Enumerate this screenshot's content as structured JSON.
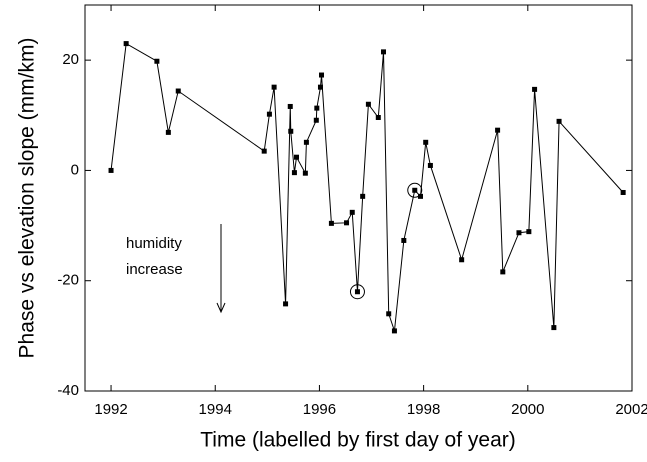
{
  "chart_data": {
    "type": "line",
    "x_label": "Time (labelled by first day of year)",
    "y_label": "Phase vs elevation slope (mm/km)",
    "annotation": "humidity increase",
    "x": [
      1992.0,
      1992.29,
      1992.88,
      1993.1,
      1993.29,
      1994.94,
      1995.04,
      1995.13,
      1995.35,
      1995.44,
      1995.45,
      1995.52,
      1995.56,
      1995.73,
      1995.75,
      1995.94,
      1995.95,
      1996.02,
      1996.04,
      1996.23,
      1996.52,
      1996.63,
      1996.73,
      1996.83,
      1996.94,
      1997.13,
      1997.23,
      1997.33,
      1997.44,
      1997.62,
      1997.83,
      1997.94,
      1998.04,
      1998.13,
      1998.73,
      1999.42,
      1999.52,
      1999.83,
      2000.02,
      2000.13,
      2000.5,
      2000.6,
      2001.83
    ],
    "series": [
      {
        "color": "#000000",
        "values": [
          0,
          23,
          19.8,
          6.9,
          14.4,
          3.5,
          10.2,
          15.1,
          -24.2,
          11.6,
          7.1,
          -0.4,
          2.4,
          -0.5,
          5.1,
          9.1,
          11.3,
          15.1,
          17.3,
          -9.6,
          -9.5,
          -7.6,
          -22.0,
          -4.7,
          12.0,
          9.6,
          21.5,
          -26.0,
          -29.1,
          -12.7,
          -3.6,
          -4.7,
          5.1,
          0.9,
          -16.2,
          7.3,
          -18.4,
          -11.3,
          -11.1,
          14.7,
          -28.5,
          8.9,
          -4.0
        ]
      }
    ],
    "highlighted": [
      22,
      30
    ],
    "xlim": [
      1991.5,
      2002
    ],
    "xticks": [
      1992,
      1994,
      1996,
      1998,
      2000,
      2002
    ],
    "ylim": [
      -40,
      30
    ],
    "yticks": [
      -40,
      -20,
      0,
      20
    ]
  }
}
